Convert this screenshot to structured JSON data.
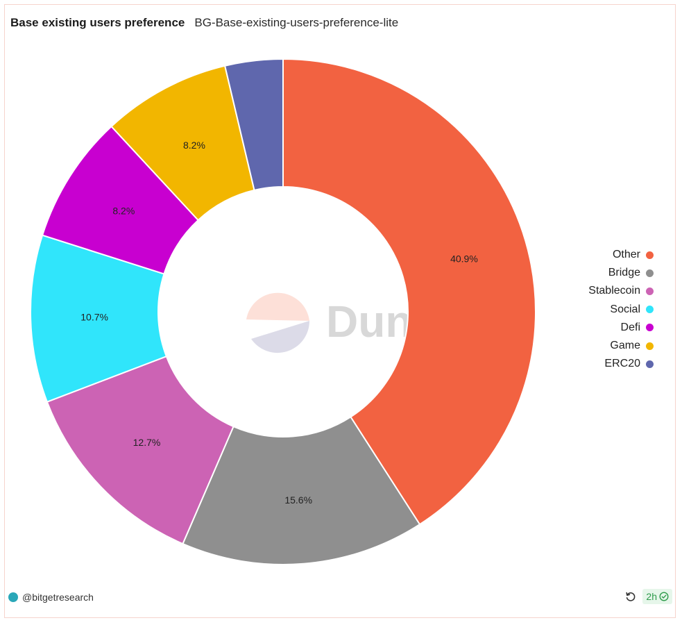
{
  "header": {
    "title": "Base existing users preference",
    "subtitle": "BG-Base-existing-users-preference-lite"
  },
  "watermark": {
    "text": "Dune"
  },
  "chart_data": {
    "type": "pie",
    "style": "donut",
    "title": "Base existing users preference",
    "subtitle": "BG-Base-existing-users-preference-lite",
    "legend_placement": "right",
    "slices": [
      {
        "name": "Other",
        "value": 40.9,
        "label": "40.9%",
        "color": "#f26241"
      },
      {
        "name": "Bridge",
        "value": 15.6,
        "label": "15.6%",
        "color": "#8f8f8f"
      },
      {
        "name": "Stablecoin",
        "value": 12.7,
        "label": "12.7%",
        "color": "#cc63b4"
      },
      {
        "name": "Social",
        "value": 10.7,
        "label": "10.7%",
        "color": "#30e5fb"
      },
      {
        "name": "Defi",
        "value": 8.2,
        "label": "8.2%",
        "color": "#c800d0"
      },
      {
        "name": "Game",
        "value": 8.2,
        "label": "8.2%",
        "color": "#f2b600"
      },
      {
        "name": "ERC20",
        "value": 3.7,
        "label": "",
        "color": "#5f67ad"
      }
    ]
  },
  "footer": {
    "author": "@bitgetresearch",
    "refresh_icon": "refresh-icon",
    "age": "2h",
    "status_icon": "check-circle-icon"
  }
}
